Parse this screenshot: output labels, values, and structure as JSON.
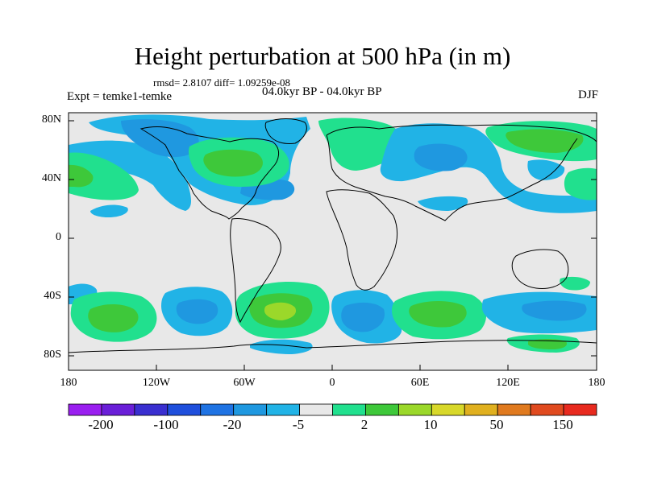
{
  "title": "Height perturbation at 500 hPa (in m)",
  "stats": "rmsd= 2.8107 diff= 1.09259e-08",
  "experiment": "Expt = temke1-temke",
  "period": "04.0kyr BP - 04.0kyr BP",
  "season": "DJF",
  "y_ticks": [
    "80N",
    "40N",
    "0",
    "40S",
    "80S"
  ],
  "x_ticks": [
    "180",
    "120W",
    "60W",
    "0",
    "60E",
    "120E",
    "180"
  ],
  "colorbar": {
    "colors": [
      "#9a1ff0",
      "#6a1fd8",
      "#3a2fd0",
      "#1f4fdc",
      "#1f73e3",
      "#1f98e0",
      "#21b3e6",
      "#e8e8e8",
      "#21e08e",
      "#3ec83a",
      "#9bd82a",
      "#d8d82a",
      "#e0b01f",
      "#e07a1f",
      "#e04a1f",
      "#e82a1f"
    ],
    "labels": [
      "-200",
      "-100",
      "-20",
      "-5",
      "2",
      "10",
      "50",
      "150"
    ]
  },
  "colors": {
    "neutral": "#e8e8e8",
    "light_blue": "#21b3e6",
    "mid_blue": "#1f98e0",
    "green": "#21e08e",
    "dark_green": "#3ec83a",
    "yellow_green": "#9bd82a"
  }
}
